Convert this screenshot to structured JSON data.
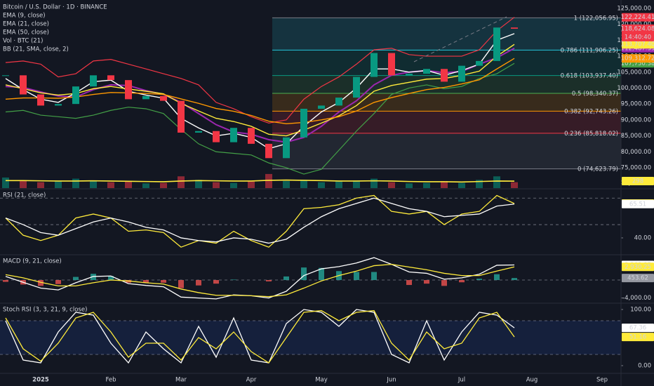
{
  "chart_data": [
    {
      "type": "candlestick",
      "title": "Bitcoin / U.S. Dollar · 1D · BINANCE",
      "categories": [
        null,
        null,
        "2025",
        null,
        null,
        null,
        "Feb",
        null,
        null,
        null,
        "Mar",
        null,
        null,
        null,
        "Apr",
        null,
        null,
        null,
        "May",
        null,
        null,
        null,
        "Jun",
        null,
        null,
        null,
        "Jul",
        null,
        null,
        null,
        "Aug",
        null,
        null,
        null,
        "Sep"
      ],
      "close": {
        "values": [
          104000,
          98000,
          94500,
          95000,
          100500,
          104000,
          102500,
          96500,
          97500,
          96000,
          86000,
          86500,
          83000,
          87500,
          82500,
          78000,
          84500,
          93500,
          94500,
          97000,
          103500,
          111000,
          104000,
          104500,
          106000,
          102000,
          107000,
          108500,
          119000,
          118624.08,
          null,
          null,
          null,
          null,
          null
        ],
        "last_label": "118,624.08",
        "up_color": "#089981",
        "down_color": "#f23645",
        "color": "#f23645"
      },
      "countdown": "14:40:40",
      "series": [
        {
          "name": "EMA (9, close)",
          "color": "#ffffff",
          "last_label": "117,091.27",
          "values": [
            103000,
            99500,
            96500,
            95500,
            98500,
            102000,
            102500,
            99000,
            97800,
            96800,
            90500,
            87500,
            85000,
            85800,
            84500,
            81000,
            82500,
            88000,
            92500,
            95500,
            100000,
            106000,
            106000,
            105000,
            105500,
            104000,
            105500,
            107500,
            115000,
            117091.27,
            null,
            null,
            null,
            null,
            null
          ]
        },
        {
          "name": "EMA (21, close)",
          "color": "#ffeb3b",
          "last_label": "113,707.40",
          "values": [
            101000,
            99800,
            98500,
            97800,
            98300,
            99800,
            100500,
            99700,
            99000,
            98200,
            95200,
            92800,
            90500,
            89500,
            88000,
            85500,
            85000,
            86800,
            89000,
            91300,
            94500,
            99000,
            100800,
            101800,
            102800,
            103000,
            104000,
            105300,
            110000,
            113707.4,
            null,
            null,
            null,
            null,
            null
          ]
        },
        {
          "name": "EMA (50, close)",
          "color": "#ff9800",
          "last_label": "109,312.72",
          "values": [
            96500,
            96900,
            96900,
            96800,
            97200,
            98000,
            98600,
            98500,
            98300,
            98000,
            96600,
            95200,
            93600,
            92700,
            91400,
            89600,
            88800,
            89200,
            90000,
            91000,
            92800,
            95500,
            97000,
            98300,
            99500,
            100200,
            101300,
            102600,
            106000,
            109312.72,
            null,
            null,
            null,
            null,
            null
          ]
        }
      ],
      "bb": {
        "name": "BB (21, SMA, close, 2)",
        "upper": {
          "color": "#f23645",
          "last_label": "122,224.41",
          "values": [
            108000,
            108500,
            107500,
            103500,
            104500,
            108500,
            109000,
            107500,
            106000,
            104500,
            103000,
            101000,
            95500,
            93500,
            91000,
            89000,
            90000,
            96500,
            100500,
            103500,
            107500,
            112000,
            112500,
            110500,
            110000,
            110000,
            110000,
            112000,
            118000,
            122224.41,
            null,
            null,
            null,
            null,
            null
          ]
        },
        "basis": {
          "color": "#9c27b0",
          "last_label": "112,487.39",
          "values": [
            100500,
            100200,
            98800,
            97500,
            97200,
            99500,
            101000,
            100800,
            99200,
            98000,
            95500,
            92000,
            88500,
            86200,
            85500,
            83800,
            83000,
            84500,
            88000,
            92500,
            96000,
            101000,
            104000,
            105000,
            105500,
            104800,
            105200,
            107500,
            109500,
            112487.39,
            null,
            null,
            null,
            null,
            null
          ]
        },
        "lower": {
          "color": "#43a047",
          "last_label": "107,750.38",
          "values": [
            92500,
            93000,
            91500,
            91000,
            90500,
            91500,
            93000,
            94000,
            93500,
            92000,
            87000,
            82500,
            80000,
            79500,
            79000,
            76500,
            75000,
            73000,
            74500,
            80500,
            86500,
            92000,
            98000,
            100000,
            101000,
            99800,
            100500,
            103000,
            104500,
            107750.38,
            null,
            null,
            null,
            null,
            null
          ]
        }
      },
      "volume": {
        "name": "Vol · BTC (21)",
        "ylim": [
          0,
          8000
        ],
        "values": [
          450,
          300,
          250,
          280,
          400,
          300,
          250,
          280,
          200,
          220,
          500,
          350,
          250,
          220,
          280,
          600,
          300,
          350,
          250,
          280,
          320,
          400,
          250,
          200,
          220,
          300,
          220,
          350,
          500,
          250,
          null,
          null,
          null,
          null,
          null
        ],
        "ma": {
          "color": "#ffeb3b",
          "values": [
            320,
            320,
            310,
            300,
            300,
            310,
            300,
            290,
            280,
            270,
            300,
            320,
            310,
            300,
            300,
            330,
            340,
            330,
            320,
            300,
            300,
            310,
            300,
            280,
            270,
            270,
            260,
            280,
            300,
            298,
            null,
            null,
            null,
            null,
            null
          ]
        }
      },
      "fib": [
        {
          "label": "1 (122,056.95)",
          "value": 122056.95,
          "color": "#787b86"
        },
        {
          "label": "0.786 (111,906.25)",
          "value": 111906.25,
          "color": "#26c6da"
        },
        {
          "label": "0.618 (103,937.40)",
          "value": 103937.4,
          "color": "#089981"
        },
        {
          "label": "0.5 (98,340.37)",
          "value": 98340.37,
          "color": "#4caf50"
        },
        {
          "label": "0.382 (92,743.26)",
          "value": 92743.26,
          "color": "#ff9800"
        },
        {
          "label": "0.236 (85,818.02)",
          "value": 85818.02,
          "color": "#f23645"
        },
        {
          "label": "0 (74,623.79)",
          "value": 74623.79,
          "color": "#787b86"
        }
      ],
      "ylim": [
        68600,
        127640
      ],
      "yticks": [
        {
          "value": 125000,
          "label": "125,000.00"
        },
        {
          "value": 120000,
          "label": "120,000.00"
        },
        {
          "value": 115000,
          "label": "115,000.00"
        },
        {
          "value": 110000,
          "label": "110,000.00"
        },
        {
          "value": 105000,
          "label": "105,000.00"
        },
        {
          "value": 100000,
          "label": "100,000.00"
        },
        {
          "value": 95000,
          "label": "95,000.00"
        },
        {
          "value": 90000,
          "label": "90,000.00"
        },
        {
          "value": 85000,
          "label": "85,000.00"
        },
        {
          "value": 80000,
          "label": "80,000.00"
        },
        {
          "value": 75000,
          "label": "75,000.00"
        },
        {
          "value": 70000,
          "label": "70,000.00"
        }
      ]
    },
    {
      "type": "line",
      "title": "RSI (21, close)",
      "series": [
        {
          "color": "#ffeb3b",
          "last_label": "65.90",
          "values": [
            55,
            42,
            38,
            42,
            55,
            58,
            55,
            45,
            46,
            44,
            33,
            38,
            36,
            45,
            38,
            33,
            45,
            62,
            63,
            65,
            70,
            72,
            60,
            58,
            60,
            50,
            58,
            60,
            72,
            65.9,
            null,
            null,
            null,
            null,
            null
          ]
        },
        {
          "color": "#ffffff",
          "values": [
            55,
            50,
            44,
            42,
            47,
            52,
            55,
            52,
            48,
            46,
            40,
            38,
            37,
            40,
            39,
            36,
            39,
            48,
            56,
            62,
            66,
            70,
            66,
            62,
            60,
            56,
            57,
            58,
            64,
            65.51,
            null,
            null,
            null,
            null,
            null
          ]
        }
      ],
      "bands": [
        50,
        70
      ],
      "ylim": [
        27.8,
        76.5
      ],
      "yticks": [
        {
          "value": 40,
          "label": "40.00"
        }
      ]
    },
    {
      "type": "macd",
      "title": "MACD (9, 21, close)",
      "histogram": {
        "up_color": "#26a69a",
        "down_color": "#ef5350",
        "color": "#9598a1",
        "values": [
          -400,
          -1000,
          -1300,
          -900,
          700,
          1400,
          900,
          -600,
          -600,
          -600,
          -1800,
          -1200,
          -800,
          100,
          0,
          -300,
          800,
          2800,
          2700,
          2000,
          1800,
          1800,
          0,
          -1100,
          -800,
          -1300,
          -500,
          300,
          1300,
          453.62,
          null,
          null,
          null,
          null,
          null
        ]
      },
      "series": [
        {
          "color": "#ffffff",
          "last_label": "3,363.87",
          "values": [
            800,
            -500,
            -1800,
            -2200,
            -600,
            800,
            900,
            -800,
            -1200,
            -1500,
            -3800,
            -4000,
            -4200,
            -3300,
            -3500,
            -4000,
            -2500,
            1000,
            2500,
            3000,
            3800,
            5000,
            3500,
            1800,
            1500,
            200,
            500,
            1300,
            3300,
            3363.87,
            null,
            null,
            null,
            null,
            null
          ]
        },
        {
          "color": "#ffeb3b",
          "last_label": "2,930.25",
          "values": [
            1200,
            500,
            -500,
            -1300,
            -1300,
            -600,
            0,
            -200,
            -600,
            -900,
            -2000,
            -2800,
            -3400,
            -3400,
            -3500,
            -3700,
            -3300,
            -1800,
            -200,
            1000,
            2000,
            3200,
            3500,
            2900,
            2300,
            1500,
            1000,
            1000,
            2000,
            2930.25,
            null,
            null,
            null,
            null,
            null
          ]
        }
      ],
      "bands": [
        0
      ],
      "ylim": [
        -5000,
        5480
      ],
      "yticks": [
        {
          "value": -4000,
          "label": "-4,000.00"
        }
      ]
    },
    {
      "type": "line",
      "title": "Stoch RSI (3, 3, 21, 9, close)",
      "series": [
        {
          "color": "#ffffff",
          "values": [
            80,
            10,
            5,
            60,
            95,
            90,
            40,
            5,
            60,
            30,
            5,
            70,
            15,
            85,
            10,
            5,
            75,
            100,
            95,
            70,
            100,
            95,
            20,
            5,
            80,
            10,
            60,
            95,
            90,
            67.36,
            null,
            null,
            null,
            null,
            null
          ]
        },
        {
          "color": "#ffeb3b",
          "values": [
            85,
            30,
            8,
            40,
            85,
            95,
            60,
            15,
            40,
            40,
            10,
            50,
            30,
            60,
            25,
            5,
            50,
            95,
            98,
            80,
            95,
            98,
            40,
            10,
            60,
            30,
            40,
            85,
            95,
            51.16,
            null,
            null,
            null,
            null,
            null
          ]
        }
      ],
      "bands": [
        20,
        80
      ],
      "shade": true,
      "ylim": [
        -13.75,
        110
      ],
      "yticks": [
        {
          "value": 100,
          "label": "100.00"
        },
        {
          "value": 0,
          "label": "0.00"
        }
      ]
    }
  ]
}
